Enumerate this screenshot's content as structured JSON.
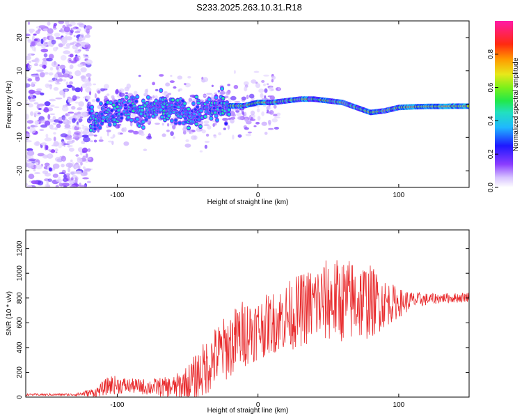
{
  "title": "S233.2025.263.10.31.R18",
  "chart_data": [
    {
      "type": "heatmap",
      "name": "spectrogram",
      "xlabel": "Height of straight line (km)",
      "ylabel": "Frequency (Hz)",
      "xlim": [
        -165,
        150
      ],
      "ylim": [
        -25,
        25
      ],
      "xticks": [
        -100,
        0,
        100
      ],
      "yticks": [
        -20,
        -10,
        0,
        10,
        20
      ],
      "colorbar": {
        "label": "Normalized spectral amplitude",
        "range": [
          0,
          1
        ],
        "ticks": [
          0.0,
          0.2,
          0.4,
          0.6,
          0.8
        ]
      },
      "ridge": {
        "x": [
          -165,
          -150,
          -120,
          -115,
          -100,
          -90,
          -80,
          -70,
          -60,
          -50,
          -40,
          -30,
          -20,
          -10,
          0,
          10,
          20,
          30,
          40,
          50,
          60,
          70,
          80,
          90,
          100,
          110,
          120,
          130,
          140,
          150
        ],
        "freq": [
          0,
          0,
          -3,
          -3.5,
          -2,
          -1,
          -2.5,
          -1,
          -2,
          -3,
          -2.5,
          -1,
          -0.5,
          -0.5,
          0.5,
          0.5,
          1,
          1.5,
          1.5,
          1,
          0.5,
          -1,
          -2.5,
          -2,
          -1,
          -0.8,
          -0.7,
          -0.7,
          -0.6,
          -0.6
        ]
      }
    },
    {
      "type": "line",
      "name": "snr",
      "xlabel": "Height of straight line (km)",
      "ylabel": "SNR (10 * v/v)",
      "xlim": [
        -165,
        150
      ],
      "ylim": [
        0,
        1350
      ],
      "xticks": [
        -100,
        0,
        100
      ],
      "yticks": [
        0,
        200,
        400,
        600,
        800,
        1000,
        1200
      ],
      "color": "#e8292b",
      "series_envelope": {
        "x": [
          -165,
          -130,
          -115,
          -105,
          -90,
          -75,
          -60,
          -50,
          -40,
          -30,
          -20,
          -10,
          0,
          10,
          20,
          30,
          40,
          50,
          60,
          70,
          80,
          90,
          100,
          110,
          120,
          130,
          140,
          150
        ],
        "mean": [
          20,
          20,
          40,
          100,
          90,
          80,
          80,
          110,
          200,
          330,
          420,
          520,
          550,
          600,
          650,
          700,
          750,
          780,
          780,
          780,
          770,
          760,
          760,
          780,
          790,
          800,
          800,
          810
        ],
        "spread": [
          8,
          10,
          40,
          80,
          60,
          70,
          90,
          150,
          220,
          250,
          270,
          280,
          250,
          250,
          280,
          300,
          320,
          340,
          340,
          340,
          300,
          200,
          120,
          70,
          50,
          40,
          40,
          40
        ]
      }
    }
  ]
}
